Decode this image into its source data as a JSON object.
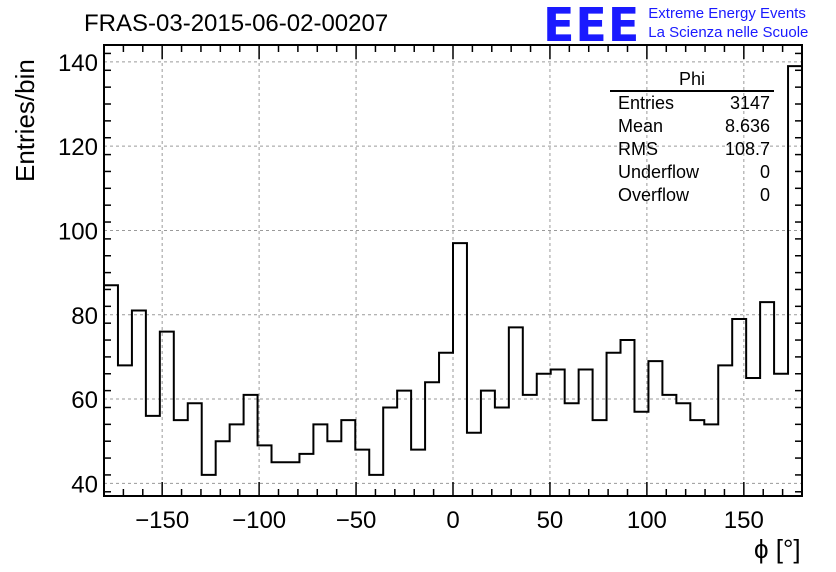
{
  "header": {
    "title": "FRAS-03-2015-06-02-00207"
  },
  "logo": {
    "mark": "EEE",
    "line1": "Extreme Energy Events",
    "line2": "La Scienza nelle Scuole",
    "color": "#1a1aff"
  },
  "stats_box": {
    "title": "Phi",
    "rows": [
      {
        "label": "Entries",
        "value": "3147"
      },
      {
        "label": "Mean",
        "value": "8.636"
      },
      {
        "label": "RMS",
        "value": "108.7"
      },
      {
        "label": "Underflow",
        "value": "0"
      },
      {
        "label": "Overflow",
        "value": "0"
      }
    ]
  },
  "chart_data": {
    "type": "histogram",
    "title": "FRAS-03-2015-06-02-00207",
    "xlabel": "ϕ [°]",
    "ylabel": "Entries/bin",
    "xlim": [
      -180,
      180
    ],
    "ylim": [
      37,
      144
    ],
    "bin_width": 7.2,
    "bin_start": -180,
    "values": [
      87,
      68,
      81,
      56,
      76,
      55,
      59,
      42,
      50,
      54,
      61,
      49,
      45,
      45,
      47,
      54,
      50,
      55,
      48,
      42,
      58,
      62,
      48,
      64,
      71,
      97,
      52,
      62,
      58,
      77,
      61,
      66,
      67,
      59,
      67,
      55,
      71,
      74,
      57,
      69,
      61,
      59,
      55,
      54,
      68,
      79,
      65,
      83,
      66,
      139
    ],
    "x_ticks": [
      -150,
      -100,
      -50,
      0,
      50,
      100,
      150
    ],
    "x_tick_labels": [
      "−150",
      "−100",
      "−50",
      "0",
      "50",
      "100",
      "150"
    ],
    "y_ticks": [
      40,
      60,
      80,
      100,
      120,
      140
    ],
    "y_tick_labels": [
      "40",
      "60",
      "80",
      "100",
      "120",
      "140"
    ],
    "grid": true,
    "line_color": "#000000"
  }
}
